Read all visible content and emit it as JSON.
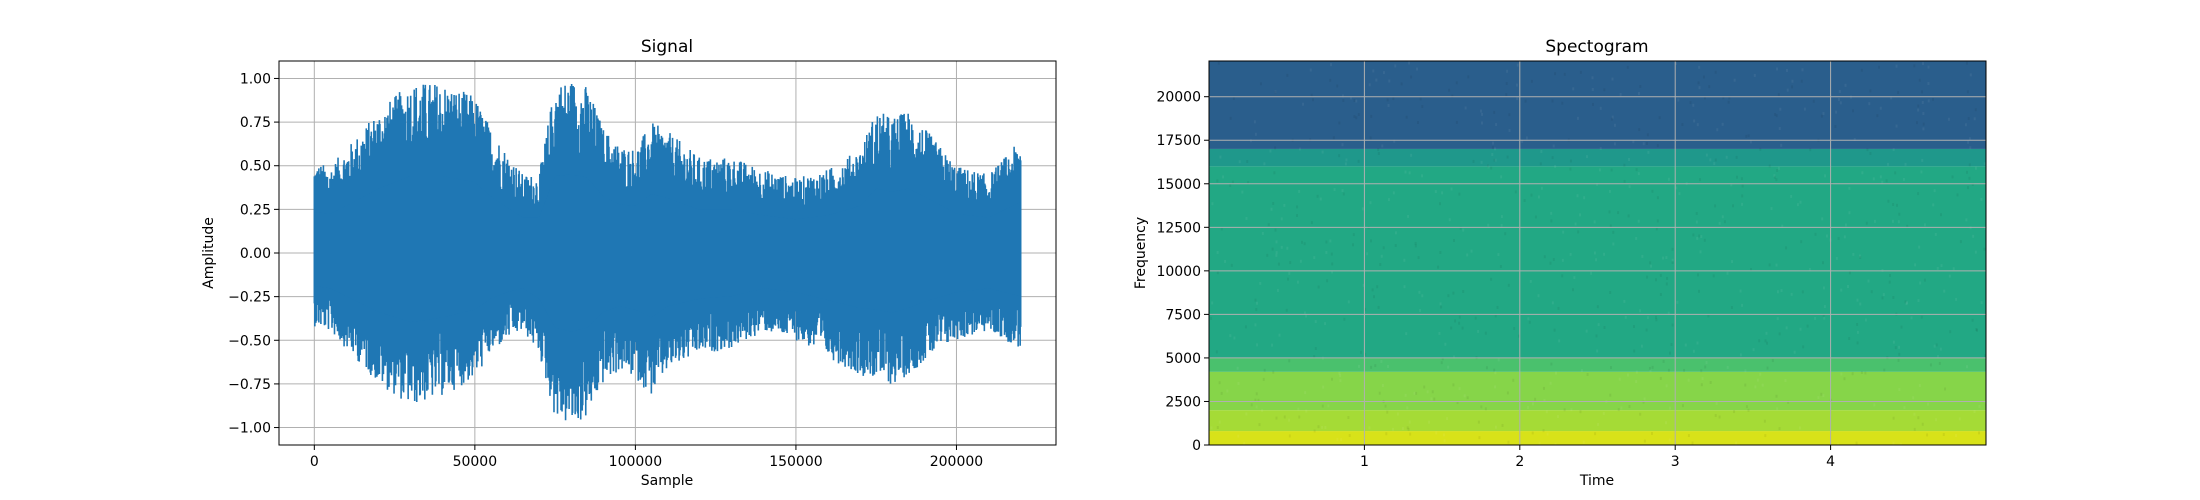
{
  "chart_data": [
    {
      "type": "line",
      "title": "Signal",
      "xlabel": "Sample",
      "ylabel": "Amplitude",
      "xlim": [
        -11000,
        231000
      ],
      "ylim": [
        -1.1,
        1.1
      ],
      "grid": true,
      "series_color": "#1f77b4",
      "x_ticks": [
        0,
        50000,
        100000,
        150000,
        200000
      ],
      "x_tick_labels": [
        "0",
        "50000",
        "100000",
        "150000",
        "200000"
      ],
      "y_ticks": [
        1.0,
        0.75,
        0.5,
        0.25,
        0.0,
        -0.25,
        -0.5,
        -0.75,
        -1.0
      ],
      "y_tick_labels": [
        "1.00",
        "0.75",
        "0.50",
        "0.25",
        "0.00",
        "−0.25",
        "−0.50",
        "−0.75",
        "−1.00"
      ],
      "envelope": {
        "description": "approximate positive/negative peak amplitude of the waveform at sample positions",
        "x": [
          0,
          5000,
          10000,
          20000,
          30000,
          40000,
          50000,
          55000,
          60000,
          65000,
          70000,
          75000,
          80000,
          85000,
          90000,
          95000,
          100000,
          105000,
          110000,
          120000,
          130000,
          140000,
          150000,
          160000,
          170000,
          175000,
          180000,
          185000,
          190000,
          200000,
          210000,
          220000
        ],
        "upper": [
          0.52,
          0.5,
          0.6,
          0.82,
          0.98,
          0.98,
          0.9,
          0.72,
          0.58,
          0.45,
          0.45,
          0.98,
          1.0,
          0.96,
          0.72,
          0.62,
          0.6,
          0.75,
          0.7,
          0.55,
          0.55,
          0.48,
          0.43,
          0.48,
          0.6,
          0.82,
          0.78,
          0.82,
          0.72,
          0.5,
          0.45,
          0.65
        ],
        "lower": [
          -0.42,
          -0.45,
          -0.55,
          -0.75,
          -0.88,
          -0.82,
          -0.72,
          -0.58,
          -0.5,
          -0.45,
          -0.58,
          -0.95,
          -1.0,
          -0.95,
          -0.75,
          -0.68,
          -0.72,
          -0.82,
          -0.68,
          -0.58,
          -0.55,
          -0.45,
          -0.5,
          -0.6,
          -0.7,
          -0.72,
          -0.76,
          -0.7,
          -0.62,
          -0.5,
          -0.45,
          -0.55
        ]
      }
    },
    {
      "type": "heatmap",
      "title": "Spectogram",
      "xlabel": "Time",
      "ylabel": "Frequency",
      "xlim": [
        0,
        5
      ],
      "ylim": [
        0,
        22050
      ],
      "grid": true,
      "x_ticks": [
        1,
        2,
        3,
        4
      ],
      "x_tick_labels": [
        "1",
        "2",
        "3",
        "4"
      ],
      "y_ticks": [
        0,
        2500,
        5000,
        7500,
        10000,
        12500,
        15000,
        17500,
        20000
      ],
      "y_tick_labels": [
        "0",
        "2500",
        "5000",
        "7500",
        "10000",
        "12500",
        "15000",
        "17500",
        "20000"
      ],
      "colormap": "viridis",
      "frequency_bands": [
        {
          "from_hz": 0,
          "to_hz": 800,
          "color": "#d8e219"
        },
        {
          "from_hz": 800,
          "to_hz": 2000,
          "color": "#a5db36"
        },
        {
          "from_hz": 2000,
          "to_hz": 4200,
          "color": "#86d549"
        },
        {
          "from_hz": 4200,
          "to_hz": 5000,
          "color": "#4ac16d"
        },
        {
          "from_hz": 5000,
          "to_hz": 16000,
          "color": "#22a884"
        },
        {
          "from_hz": 16000,
          "to_hz": 17000,
          "color": "#1f988b"
        },
        {
          "from_hz": 17000,
          "to_hz": 22050,
          "color": "#2a5e8c"
        }
      ]
    }
  ]
}
